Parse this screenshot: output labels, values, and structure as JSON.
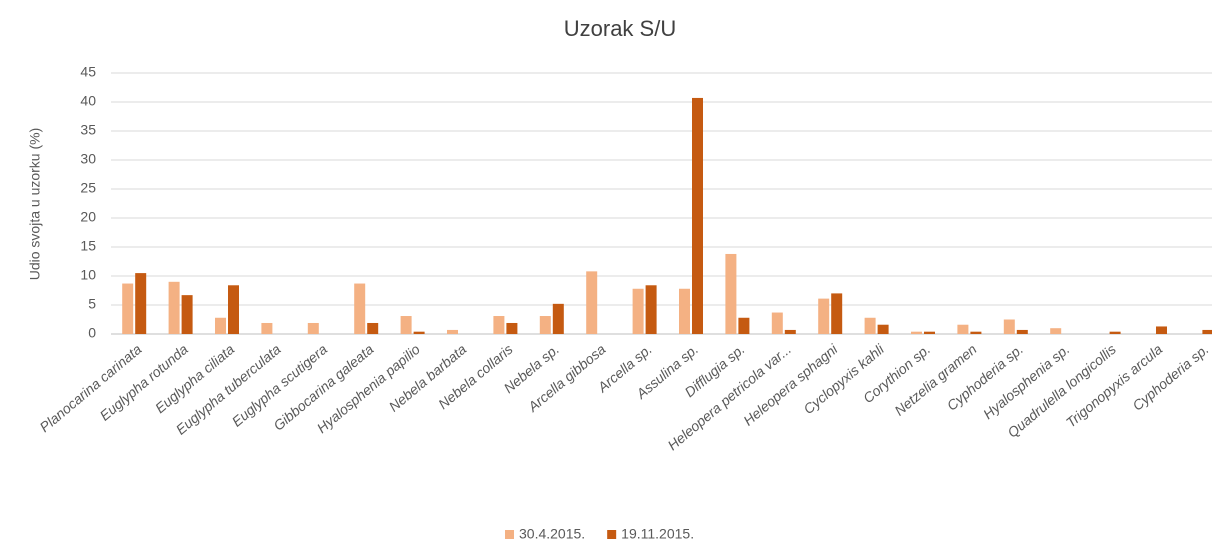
{
  "chart_data": {
    "type": "bar",
    "title": "Uzorak S/U",
    "y_label": "Udio svojta u uzorku (%)",
    "categories": [
      "Planocarina carinata",
      "Euglypha rotunda",
      "Euglypha ciliata",
      "Euglypha tuberculata",
      "Euglypha scutigera",
      "Gibbocarina galeata",
      "Hyalosphenia papilio",
      "Nebela barbata",
      "Nebela collaris",
      "Nebela sp.",
      "Arcella gibbosa",
      "Arcella sp.",
      "Assulina sp.",
      "Difflugia sp.",
      "Heleopera petricola var...",
      "Heleopera sphagni",
      "Cyclopyxis kahli",
      "Corythion sp.",
      "Netzelia gramen",
      "Cyphoderia sp.",
      "Hyalosphenia sp.",
      "Quadrulella longicollis",
      "Trigonopyxis arcula",
      "Cyphoderia sp."
    ],
    "series": [
      {
        "name": "30.4.2015.",
        "color": "#f4b183",
        "values": [
          8.7,
          9,
          2.8,
          1.9,
          1.9,
          8.7,
          3.1,
          0.7,
          3.1,
          3.1,
          10.8,
          7.8,
          7.8,
          13.8,
          3.7,
          6.1,
          2.8,
          0.4,
          1.6,
          2.5,
          1,
          0,
          0,
          0
        ]
      },
      {
        "name": "19.11.2015.",
        "color": "#c55a11",
        "values": [
          10.5,
          6.7,
          8.4,
          0,
          0,
          1.9,
          0.4,
          0,
          1.9,
          5.2,
          0,
          8.4,
          40.7,
          2.8,
          0.7,
          7,
          1.6,
          0.4,
          0.4,
          0.7,
          0,
          0.4,
          1.3,
          0.7
        ]
      }
    ],
    "ylim": [
      0,
      45
    ],
    "yticks": [
      0,
      5,
      10,
      15,
      20,
      25,
      30,
      35,
      40,
      45
    ],
    "grid": true,
    "legend": "bottom"
  }
}
